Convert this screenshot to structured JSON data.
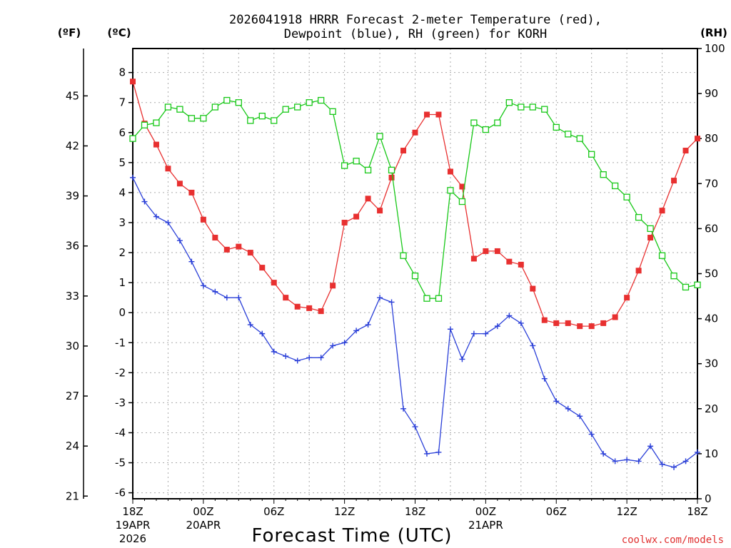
{
  "chart_data": {
    "type": "line",
    "title": [
      "2026041918 HRRR Forecast 2-meter Temperature (red),",
      "Dewpoint (blue), RH (green) for KORH"
    ],
    "xlabel": "Forecast Time (UTC)",
    "credit": "coolwx.com/models",
    "units": {
      "f": "(ºF)",
      "c": "(ºC)",
      "rh": "(RH)"
    },
    "x_hours_from_start": [
      0,
      48
    ],
    "x_ticks": [
      {
        "hour": 0,
        "label": "18Z",
        "date": "19APR",
        "year": "2026"
      },
      {
        "hour": 6,
        "label": "00Z",
        "date": "20APR",
        "year": ""
      },
      {
        "hour": 12,
        "label": "06Z",
        "date": "",
        "year": ""
      },
      {
        "hour": 18,
        "label": "12Z",
        "date": "",
        "year": ""
      },
      {
        "hour": 24,
        "label": "18Z",
        "date": "",
        "year": ""
      },
      {
        "hour": 30,
        "label": "00Z",
        "date": "21APR",
        "year": ""
      },
      {
        "hour": 36,
        "label": "06Z",
        "date": "",
        "year": ""
      },
      {
        "hour": 42,
        "label": "12Z",
        "date": "",
        "year": ""
      },
      {
        "hour": 48,
        "label": "18Z",
        "date": "",
        "year": ""
      }
    ],
    "y_celsius": {
      "range": [
        -6.2,
        8.8
      ],
      "ticks": [
        -6,
        -5,
        -4,
        -3,
        -2,
        -1,
        0,
        1,
        2,
        3,
        4,
        5,
        6,
        7,
        8
      ]
    },
    "y_fahrenheit": {
      "ticks": [
        21,
        24,
        27,
        30,
        33,
        36,
        39,
        42,
        45
      ]
    },
    "y_rh": {
      "range": [
        0,
        100
      ],
      "ticks": [
        0,
        10,
        20,
        30,
        40,
        50,
        60,
        70,
        80,
        90,
        100
      ]
    },
    "series": [
      {
        "name": "Temperature",
        "unit": "C",
        "color": "#e83030",
        "marker": "filled-square",
        "values": [
          7.7,
          6.3,
          5.6,
          4.8,
          4.3,
          4.0,
          3.1,
          2.5,
          2.1,
          2.2,
          2.0,
          1.5,
          1.0,
          0.5,
          0.2,
          0.15,
          0.05,
          0.9,
          3.0,
          3.2,
          3.8,
          3.4,
          4.5,
          5.4,
          6.0,
          6.6,
          6.6,
          4.7,
          4.2,
          1.8,
          2.05,
          2.05,
          1.7,
          1.6,
          0.8,
          -0.25,
          -0.35,
          -0.35,
          -0.45,
          -0.45,
          -0.35,
          -0.15,
          0.5,
          1.4,
          2.5,
          3.4,
          4.4,
          5.4,
          5.8
        ]
      },
      {
        "name": "Dewpoint",
        "unit": "C",
        "color": "#2a3fd8",
        "marker": "plus",
        "values": [
          4.5,
          3.7,
          3.2,
          3.0,
          2.4,
          1.7,
          0.9,
          0.7,
          0.5,
          0.5,
          -0.4,
          -0.7,
          -1.3,
          -1.45,
          -1.6,
          -1.5,
          -1.5,
          -1.1,
          -1.0,
          -0.6,
          -0.4,
          0.5,
          0.35,
          -3.2,
          -3.8,
          -4.7,
          -4.65,
          -0.55,
          -1.55,
          -0.7,
          -0.7,
          -0.45,
          -0.1,
          -0.35,
          -1.1,
          -2.2,
          -2.95,
          -3.2,
          -3.45,
          -4.05,
          -4.7,
          -4.95,
          -4.9,
          -4.95,
          -4.45,
          -5.05,
          -5.15,
          -4.95,
          -4.65
        ]
      },
      {
        "name": "RH",
        "unit": "%",
        "color": "#18c818",
        "marker": "open-square",
        "values": [
          80,
          83,
          83.5,
          87,
          86.5,
          84.5,
          84.5,
          87,
          88.5,
          88,
          84,
          85,
          84,
          86.5,
          87,
          88,
          88.5,
          86,
          74,
          75,
          73,
          80.5,
          73,
          54,
          49.5,
          44.5,
          44.5,
          68.5,
          66,
          83.5,
          82,
          83.5,
          88,
          87,
          87,
          86.5,
          82.5,
          81,
          80,
          76.5,
          72,
          69.5,
          67,
          62.5,
          60,
          54,
          49.5,
          47,
          47.5
        ]
      }
    ]
  }
}
